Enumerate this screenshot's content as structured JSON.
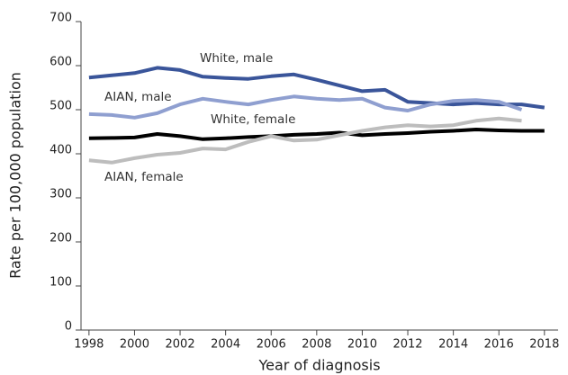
{
  "chart_data": {
    "type": "line",
    "x_label": "Year of diagnosis",
    "y_label": "Rate per 100,000 population",
    "x": [
      1998,
      1999,
      2000,
      2001,
      2002,
      2003,
      2004,
      2005,
      2006,
      2007,
      2008,
      2009,
      2010,
      2011,
      2012,
      2013,
      2014,
      2015,
      2016,
      2017,
      2018
    ],
    "series": [
      {
        "name": "White, male",
        "color": "#3a559a",
        "values": [
          573,
          578,
          583,
          595,
          590,
          575,
          572,
          570,
          576,
          580,
          568,
          555,
          542,
          545,
          518,
          515,
          512,
          515,
          512,
          512,
          505
        ]
      },
      {
        "name": "AIAN, male",
        "color": "#8f9fd0",
        "values": [
          490,
          488,
          482,
          492,
          512,
          525,
          518,
          512,
          522,
          530,
          525,
          522,
          525,
          505,
          498,
          512,
          520,
          522,
          518,
          500,
          null
        ]
      },
      {
        "name": "White, female",
        "color": "#000000",
        "values": [
          435,
          436,
          437,
          445,
          440,
          433,
          435,
          438,
          440,
          443,
          445,
          448,
          442,
          445,
          447,
          450,
          452,
          455,
          453,
          452,
          452
        ]
      },
      {
        "name": "AIAN, female",
        "color": "#bdbdbd",
        "values": [
          385,
          380,
          390,
          398,
          402,
          412,
          410,
          427,
          440,
          430,
          432,
          442,
          452,
          460,
          465,
          462,
          465,
          475,
          480,
          475,
          null
        ]
      }
    ],
    "xlim": [
      1997.65,
      2018.6
    ],
    "xticks": [
      1998,
      2000,
      2002,
      2004,
      2006,
      2008,
      2010,
      2012,
      2014,
      2016,
      2018
    ],
    "ylim": [
      0,
      700
    ],
    "yticks": [
      0,
      100,
      200,
      300,
      400,
      500,
      600,
      700
    ]
  }
}
